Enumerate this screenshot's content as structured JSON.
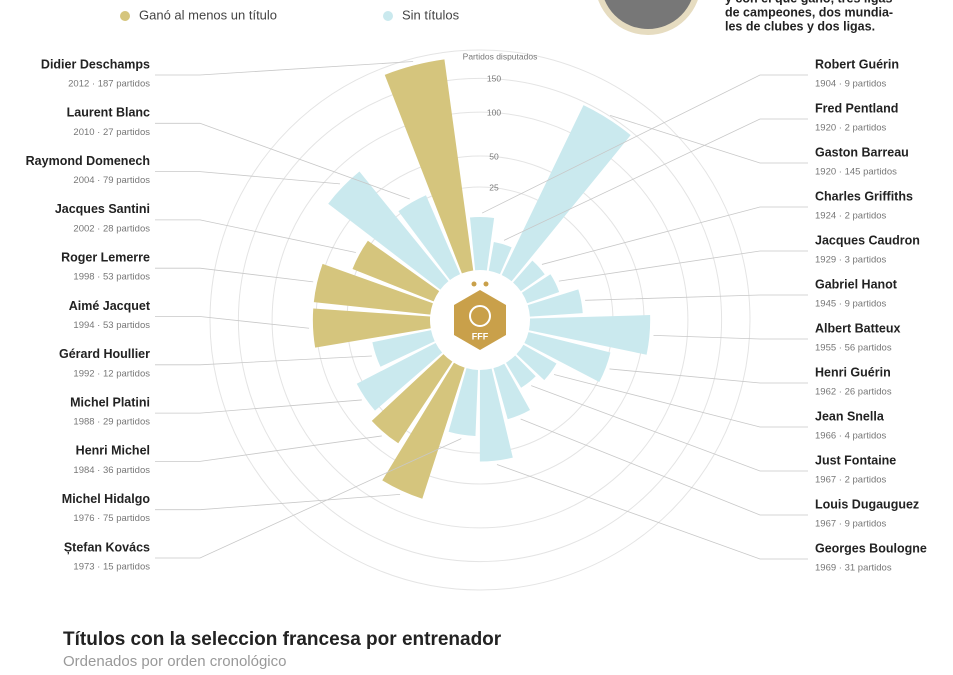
{
  "chart_data": {
    "type": "radial-bar",
    "title": "Títulos con la seleccion francesa por entrenador",
    "subtitle": "Ordenados por orden cronológico",
    "axis_label": "Partidos disputados",
    "note_lines": [
      "y con el que ganó, tres ligas",
      "de campeones, dos mundia-",
      "les de clubes y dos ligas."
    ],
    "logo_text": "FFF",
    "groups": [
      {
        "name": "Ganó al menos un título",
        "color": "#d5c57d"
      },
      {
        "name": "Sin títulos",
        "color": "#cae9ee"
      }
    ],
    "categories": [
      "Robert Guérin",
      "Fred Pentland",
      "Gaston Barreau",
      "Charles Griffiths",
      "Jacques Caudron",
      "Gabriel Hanot",
      "Albert Batteux",
      "Henri Guérin",
      "Jean Snella",
      "Just Fontaine",
      "Louis Dugauguez",
      "Georges Boulogne",
      "Ștefan Kovács",
      "Michel Hidalgo",
      "Henri Michel",
      "Michel Platini",
      "Gérard Houllier",
      "Aimé Jacquet",
      "Roger Lemerre",
      "Jacques Santini",
      "Raymond Domenech",
      "Laurent Blanc",
      "Didier Deschamps"
    ],
    "values": [
      9,
      2,
      145,
      2,
      3,
      9,
      56,
      26,
      4,
      2,
      9,
      31,
      15,
      75,
      36,
      29,
      12,
      53,
      53,
      28,
      79,
      27,
      187
    ],
    "value_labels": [
      "1904 · 9 partidos",
      "1920 · 2 partidos",
      "1920 · 145 partidos",
      "1924 · 2 partidos",
      "1929 · 3 partidos",
      "1945 · 9 partidos",
      "1955 · 56 partidos",
      "1962 · 26 partidos",
      "1966 · 4 partidos",
      "1967 · 2 partidos",
      "1967 · 9 partidos",
      "1969 · 31 partidos",
      "1973 · 15 partidos",
      "1976 · 75 partidos",
      "1984 · 36 partidos",
      "1988 · 29 partidos",
      "1992 · 12 partidos",
      "1994 · 53 partidos",
      "1998 · 53 partidos",
      "2002 · 28 partidos",
      "2004 · 79 partidos",
      "2010 · 27 partidos",
      "2012 · 187 partidos"
    ],
    "group": [
      1,
      1,
      1,
      1,
      1,
      1,
      1,
      1,
      1,
      1,
      1,
      1,
      1,
      0,
      0,
      1,
      1,
      0,
      0,
      0,
      1,
      1,
      0
    ],
    "rlim": [
      0,
      200
    ],
    "rscale": "sqrt",
    "rticks": [
      25,
      50,
      100,
      150
    ],
    "grid": true
  }
}
